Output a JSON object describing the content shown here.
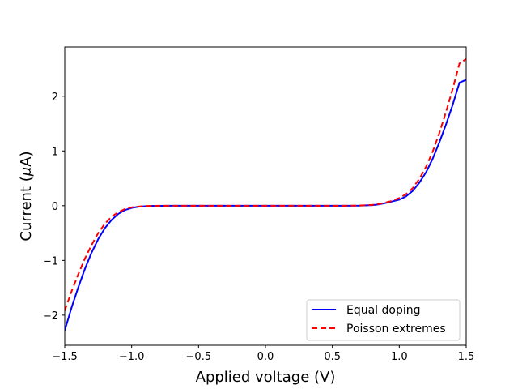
{
  "chart_data": {
    "type": "line",
    "title": "",
    "xlabel": "Applied voltage (V)",
    "ylabel_prefix": "Current (",
    "ylabel_mu": "μ",
    "ylabel_suffix": "A)",
    "xlim": [
      -1.5,
      1.5
    ],
    "ylim": [
      -2.55,
      2.9
    ],
    "x_ticks": [
      -1.5,
      -1.0,
      -0.5,
      0.0,
      0.5,
      1.0,
      1.5
    ],
    "x_tick_labels": [
      "−1.5",
      "−1.0",
      "−0.5",
      "0.0",
      "0.5",
      "1.0",
      "1.5"
    ],
    "y_ticks": [
      -2,
      -1,
      0,
      1,
      2
    ],
    "y_tick_labels": [
      "−2",
      "−1",
      "0",
      "1",
      "2"
    ],
    "grid": false,
    "legend_position": "lower-right",
    "series": [
      {
        "name": "Equal doping",
        "color": "#0000ff",
        "style": "solid",
        "x": [
          -1.5,
          -1.45,
          -1.4,
          -1.35,
          -1.3,
          -1.25,
          -1.2,
          -1.15,
          -1.1,
          -1.05,
          -1.0,
          -0.95,
          -0.9,
          -0.85,
          -0.8,
          -0.7,
          -0.6,
          -0.5,
          -0.4,
          -0.3,
          -0.2,
          -0.1,
          0.0,
          0.1,
          0.2,
          0.3,
          0.4,
          0.5,
          0.6,
          0.7,
          0.8,
          0.85,
          0.9,
          0.95,
          1.0,
          1.05,
          1.1,
          1.15,
          1.2,
          1.25,
          1.3,
          1.35,
          1.4,
          1.45,
          1.5
        ],
        "y": [
          -2.28,
          -1.87,
          -1.5,
          -1.16,
          -0.86,
          -0.61,
          -0.41,
          -0.26,
          -0.15,
          -0.08,
          -0.04,
          -0.02,
          -0.01,
          -0.005,
          -0.002,
          0,
          0,
          0,
          0,
          0,
          0,
          0,
          0,
          0,
          0,
          0,
          0,
          0,
          0,
          0.001,
          0.01,
          0.025,
          0.05,
          0.08,
          0.11,
          0.17,
          0.27,
          0.42,
          0.61,
          0.86,
          1.16,
          1.49,
          1.85,
          2.25,
          2.3
        ]
      },
      {
        "name": "Poisson extremes",
        "color": "#ff0000",
        "style": "dashed",
        "x": [
          -1.5,
          -1.45,
          -1.4,
          -1.35,
          -1.3,
          -1.25,
          -1.2,
          -1.15,
          -1.1,
          -1.05,
          -1.0,
          -0.95,
          -0.9,
          -0.85,
          -0.8,
          -0.7,
          -0.6,
          -0.5,
          -0.4,
          -0.3,
          -0.2,
          -0.1,
          0.0,
          0.1,
          0.2,
          0.3,
          0.4,
          0.5,
          0.6,
          0.7,
          0.8,
          0.85,
          0.9,
          0.95,
          1.0,
          1.05,
          1.1,
          1.15,
          1.2,
          1.25,
          1.3,
          1.35,
          1.4,
          1.45,
          1.5
        ],
        "y": [
          -1.92,
          -1.57,
          -1.26,
          -0.97,
          -0.72,
          -0.5,
          -0.33,
          -0.2,
          -0.12,
          -0.06,
          -0.03,
          -0.015,
          -0.007,
          -0.003,
          -0.001,
          0,
          0,
          0,
          0,
          0,
          0,
          0,
          0,
          0,
          0,
          0,
          0,
          0,
          0,
          0.002,
          0.015,
          0.03,
          0.06,
          0.09,
          0.14,
          0.21,
          0.32,
          0.49,
          0.71,
          0.99,
          1.33,
          1.72,
          2.14,
          2.6,
          2.68
        ]
      }
    ]
  }
}
